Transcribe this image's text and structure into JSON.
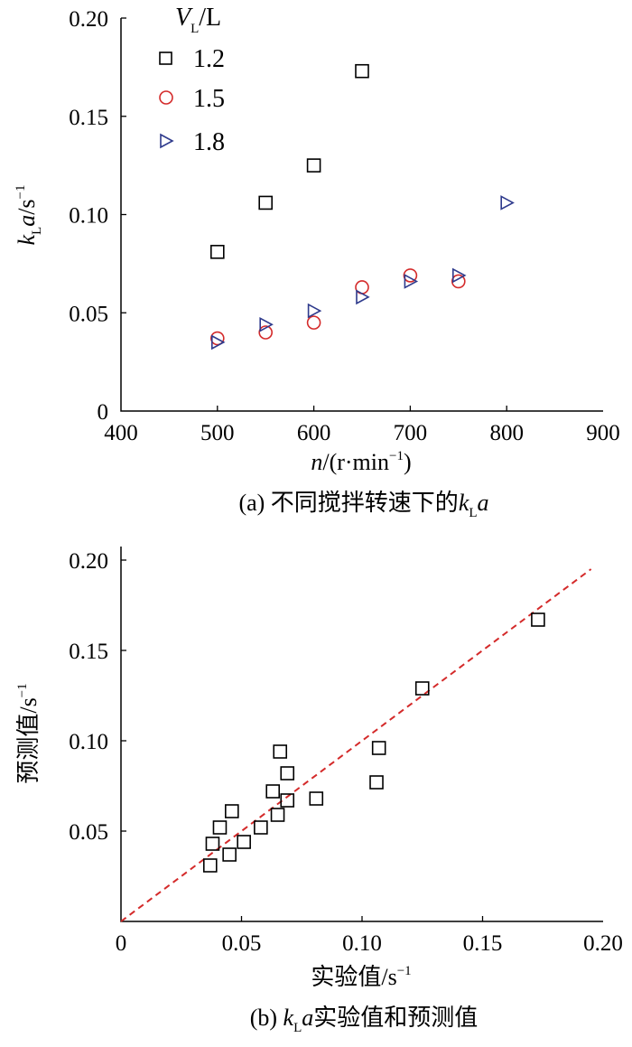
{
  "chart_data": [
    {
      "type": "scatter",
      "caption": {
        "prefix": "(a) 不同搅拌转速下的",
        "k": "k",
        "sub": "L",
        "a": "a"
      },
      "xlabel": {
        "var": "n",
        "unit": "/(r·min",
        "exp": "−1",
        "close": ")"
      },
      "ylabel": {
        "k": "k",
        "sub": "L",
        "a": "a",
        "unit": "/s",
        "exp": "−1"
      },
      "xlim": [
        400,
        900
      ],
      "ylim": [
        0,
        0.2
      ],
      "xticks": [
        400,
        500,
        600,
        700,
        800,
        900
      ],
      "xtick_labels": [
        "400",
        "500",
        "600",
        "700",
        "800",
        "900"
      ],
      "yticks": [
        0,
        0.05,
        0.1,
        0.15,
        0.2
      ],
      "ytick_labels": [
        "0",
        "0.05",
        "0.10",
        "0.15",
        "0.20"
      ],
      "legend": {
        "title_var": "V",
        "title_sub": "L",
        "title_unit": "/L",
        "placement": "top-left"
      },
      "series": [
        {
          "name": "1.2",
          "marker": "square",
          "color": "#000000",
          "x": [
            500,
            550,
            600,
            650
          ],
          "y": [
            0.081,
            0.106,
            0.125,
            0.173
          ]
        },
        {
          "name": "1.5",
          "marker": "circle",
          "color": "#d42a2a",
          "x": [
            500,
            550,
            600,
            650,
            700,
            750
          ],
          "y": [
            0.037,
            0.04,
            0.045,
            0.063,
            0.069,
            0.066
          ]
        },
        {
          "name": "1.8",
          "marker": "triangle-right",
          "color": "#2e3a8c",
          "x": [
            500,
            550,
            600,
            650,
            700,
            750,
            800
          ],
          "y": [
            0.035,
            0.044,
            0.051,
            0.058,
            0.066,
            0.069,
            0.106
          ]
        }
      ]
    },
    {
      "type": "scatter",
      "caption": {
        "prefix": "(b) ",
        "k": "k",
        "sub": "L",
        "a": "a",
        "suffix": "实验值和预测值"
      },
      "xlabel": {
        "text": "实验值/s",
        "exp": "−1"
      },
      "ylabel": {
        "text": "预测值/s",
        "exp": "−1"
      },
      "xlim": [
        0,
        0.2
      ],
      "ylim": [
        0,
        0.2
      ],
      "xticks": [
        0,
        0.05,
        0.1,
        0.15,
        0.2
      ],
      "xtick_labels": [
        "0",
        "0.05",
        "0.10",
        "0.15",
        "0.20"
      ],
      "yticks": [
        0.05,
        0.1,
        0.15,
        0.2
      ],
      "ytick_labels": [
        "0.05",
        "0.10",
        "0.15",
        "0.20"
      ],
      "reference_line": {
        "style": "dashed",
        "color": "#d42a2a",
        "x": [
          0,
          0.195
        ],
        "y": [
          0,
          0.195
        ]
      },
      "series": [
        {
          "marker": "square",
          "color": "#000000",
          "x": [
            0.037,
            0.038,
            0.041,
            0.045,
            0.046,
            0.051,
            0.058,
            0.063,
            0.065,
            0.066,
            0.069,
            0.069,
            0.081,
            0.106,
            0.107,
            0.125,
            0.173
          ],
          "y": [
            0.031,
            0.043,
            0.052,
            0.037,
            0.061,
            0.044,
            0.052,
            0.072,
            0.059,
            0.094,
            0.067,
            0.082,
            0.068,
            0.077,
            0.096,
            0.129,
            0.167
          ]
        }
      ]
    }
  ]
}
